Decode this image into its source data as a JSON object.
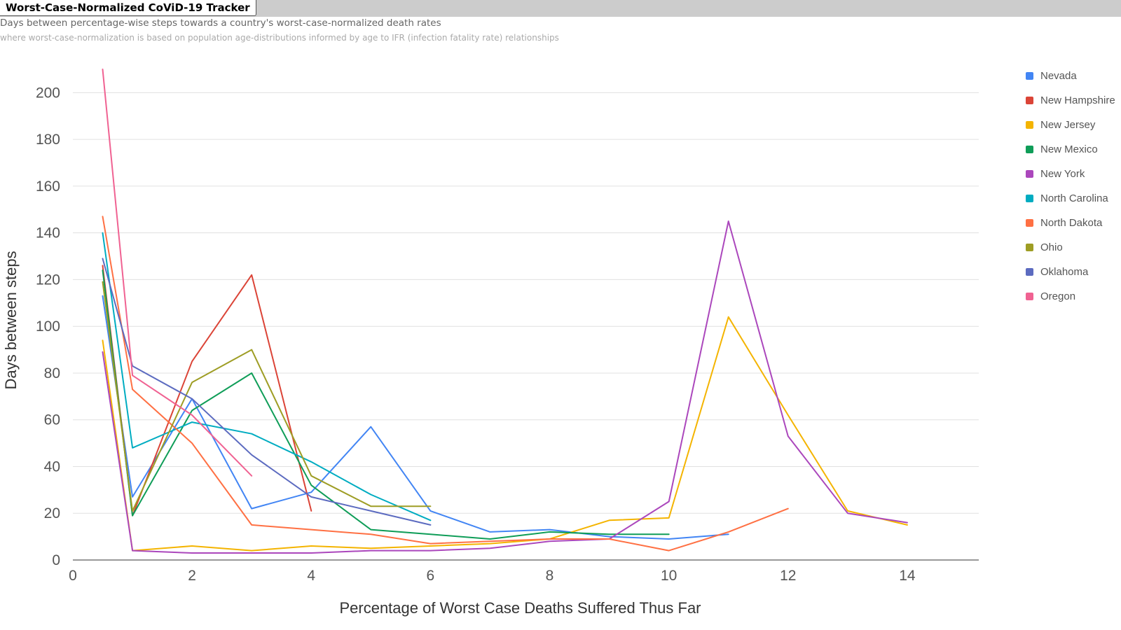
{
  "header": {
    "title": "Worst-Case-Normalized CoViD-19 Tracker",
    "subtitle": "Days between percentage-wise steps towards a country's worst-case-normalized death rates",
    "subtitle2": "where worst-case-normalization is based on population age-distributions informed by age to IFR (infection fatality rate) relationships"
  },
  "chart_data": {
    "type": "line",
    "xlabel": "Percentage of Worst Case Deaths Suffered Thus Far",
    "ylabel": "Days between steps",
    "xlim": [
      0,
      15.2
    ],
    "ylim": [
      0,
      210
    ],
    "xticks": [
      "0",
      "2",
      "4",
      "6",
      "8",
      "10",
      "12",
      "14"
    ],
    "yticks": [
      "0",
      "20",
      "40",
      "60",
      "80",
      "100",
      "120",
      "140",
      "160",
      "180",
      "200"
    ],
    "grid": "horizontal",
    "legend_position": "right",
    "series": [
      {
        "name": "Nevada",
        "color": "#4285f4",
        "x": [
          0.5,
          1,
          2,
          3,
          4,
          5,
          6,
          7,
          8,
          9,
          10,
          11
        ],
        "y": [
          113,
          27,
          69,
          22,
          29,
          57,
          21,
          12,
          13,
          10,
          9,
          11
        ]
      },
      {
        "name": "New Hampshire",
        "color": "#db4437",
        "x": [
          0.5,
          1,
          2,
          3,
          4
        ],
        "y": [
          126,
          19,
          85,
          122,
          21
        ]
      },
      {
        "name": "New Jersey",
        "color": "#f4b400",
        "x": [
          0.5,
          1,
          2,
          3,
          4,
          5,
          6,
          7,
          8,
          9,
          10,
          11,
          12,
          13,
          14
        ],
        "y": [
          94,
          4,
          6,
          4,
          6,
          5,
          6,
          7,
          9,
          17,
          18,
          104,
          62,
          21,
          15
        ]
      },
      {
        "name": "New Mexico",
        "color": "#0f9d58",
        "x": [
          0.5,
          1,
          2,
          3,
          4,
          5,
          6,
          7,
          8,
          9,
          10
        ],
        "y": [
          124,
          19,
          64,
          80,
          32,
          13,
          11,
          9,
          12,
          11,
          11
        ]
      },
      {
        "name": "New York",
        "color": "#ab47bc",
        "x": [
          0.5,
          1,
          2,
          3,
          4,
          5,
          6,
          7,
          8,
          9,
          10,
          11,
          12,
          13,
          14
        ],
        "y": [
          89,
          4,
          3,
          3,
          3,
          4,
          4,
          5,
          8,
          9,
          25,
          145,
          53,
          20,
          16
        ]
      },
      {
        "name": "North Carolina",
        "color": "#00acc1",
        "x": [
          0.5,
          1,
          2,
          3,
          4,
          5,
          6
        ],
        "y": [
          140,
          48,
          59,
          54,
          42,
          28,
          17
        ]
      },
      {
        "name": "North Dakota",
        "color": "#ff7043",
        "x": [
          0.5,
          1,
          2,
          3,
          4,
          5,
          6,
          7,
          8,
          9,
          10,
          11,
          12
        ],
        "y": [
          147,
          73,
          50,
          15,
          13,
          11,
          7,
          8,
          9,
          9,
          4,
          12,
          22
        ]
      },
      {
        "name": "Ohio",
        "color": "#9e9d24",
        "x": [
          0.5,
          1,
          2,
          3,
          4,
          5,
          6
        ],
        "y": [
          119,
          21,
          76,
          90,
          36,
          23,
          23
        ]
      },
      {
        "name": "Oklahoma",
        "color": "#5c6bc0",
        "x": [
          0.5,
          1,
          2,
          3,
          4,
          5,
          6
        ],
        "y": [
          129,
          83,
          69,
          45,
          27,
          21,
          15
        ]
      },
      {
        "name": "Oregon",
        "color": "#f06292",
        "x": [
          0.5,
          1,
          2,
          3
        ],
        "y": [
          210,
          79,
          62,
          36
        ]
      }
    ]
  }
}
